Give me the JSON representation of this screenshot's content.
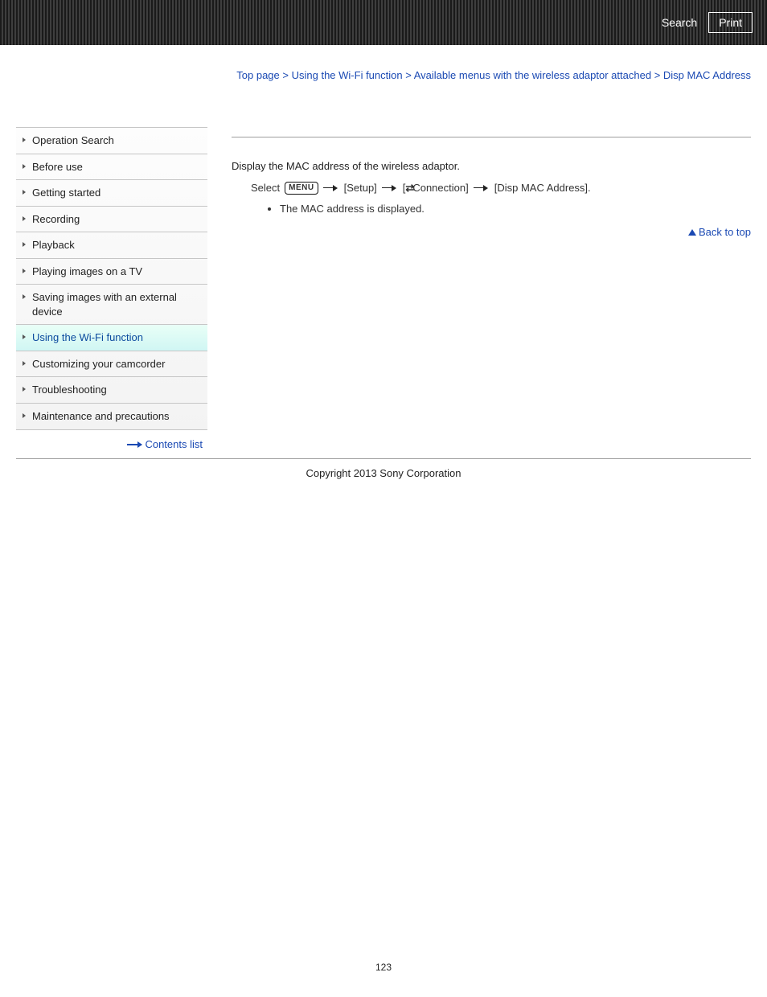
{
  "header": {
    "search_label": "Search",
    "print_label": "Print"
  },
  "sidebar": {
    "items": [
      {
        "label": "Operation Search",
        "active": false
      },
      {
        "label": "Before use",
        "active": false
      },
      {
        "label": "Getting started",
        "active": false
      },
      {
        "label": "Recording",
        "active": false
      },
      {
        "label": "Playback",
        "active": false
      },
      {
        "label": "Playing images on a TV",
        "active": false
      },
      {
        "label": "Saving images with an external device",
        "active": false
      },
      {
        "label": "Using the Wi-Fi function",
        "active": true
      },
      {
        "label": "Customizing your camcorder",
        "active": false
      },
      {
        "label": "Troubleshooting",
        "active": false
      },
      {
        "label": "Maintenance and precautions",
        "active": false
      }
    ],
    "contents_list_label": "Contents list"
  },
  "breadcrumb": {
    "parts": [
      "Top page",
      "Using the Wi-Fi function",
      "Available menus with the wireless adaptor attached",
      "Disp MAC Address"
    ],
    "sep": ">"
  },
  "content": {
    "desc": "Display the MAC address of the wireless adaptor.",
    "step_prefix": "Select",
    "menu_badge": "MENU",
    "setup": "[Setup]",
    "connection_bracket_open": "[",
    "connection_icon": "⇄",
    "connection_text": "Connection]",
    "target": "[Disp MAC Address].",
    "bullet1": "The MAC address is displayed."
  },
  "back_to_top": "Back to top",
  "copyright": "Copyright 2013 Sony Corporation",
  "page_number": "123",
  "colors": {
    "link": "#1a49b3",
    "border": "#9e9e9e",
    "text": "#222222",
    "active_bg_top": "#e9fff6",
    "active_bg_bottom": "#d0f6f4"
  }
}
